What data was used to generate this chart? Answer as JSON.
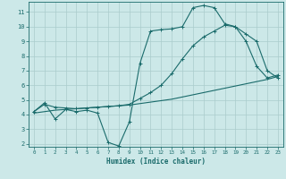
{
  "title": "",
  "xlabel": "Humidex (Indice chaleur)",
  "ylabel": "",
  "bg_color": "#cce8e8",
  "grid_color": "#aacccc",
  "line_color": "#1a6b6b",
  "xlim": [
    -0.5,
    23.5
  ],
  "ylim": [
    1.8,
    11.7
  ],
  "xticks": [
    0,
    1,
    2,
    3,
    4,
    5,
    6,
    7,
    8,
    9,
    10,
    11,
    12,
    13,
    14,
    15,
    16,
    17,
    18,
    19,
    20,
    21,
    22,
    23
  ],
  "yticks": [
    2,
    3,
    4,
    5,
    6,
    7,
    8,
    9,
    10,
    11
  ],
  "line1_x": [
    0,
    1,
    2,
    3,
    4,
    5,
    6,
    7,
    8,
    9,
    10,
    11,
    12,
    13,
    14,
    15,
    16,
    17,
    18,
    19,
    20,
    21,
    22,
    23
  ],
  "line1_y": [
    4.2,
    4.8,
    3.7,
    4.35,
    4.2,
    4.3,
    4.1,
    2.1,
    1.85,
    3.5,
    7.5,
    9.7,
    9.8,
    9.85,
    10.0,
    11.3,
    11.45,
    11.3,
    10.2,
    10.0,
    9.0,
    7.3,
    6.5,
    6.7
  ],
  "line2_x": [
    0,
    1,
    2,
    3,
    4,
    5,
    6,
    7,
    8,
    9,
    10,
    11,
    12,
    13,
    14,
    15,
    16,
    17,
    18,
    19,
    20,
    21,
    22,
    23
  ],
  "line2_y": [
    4.1,
    4.2,
    4.3,
    4.35,
    4.4,
    4.45,
    4.5,
    4.55,
    4.6,
    4.65,
    4.75,
    4.85,
    4.95,
    5.05,
    5.2,
    5.35,
    5.5,
    5.65,
    5.8,
    5.95,
    6.1,
    6.25,
    6.4,
    6.6
  ],
  "line3_x": [
    0,
    1,
    2,
    3,
    4,
    5,
    6,
    7,
    8,
    9,
    10,
    11,
    12,
    13,
    14,
    15,
    16,
    17,
    18,
    19,
    20,
    21,
    22,
    23
  ],
  "line3_y": [
    4.2,
    4.7,
    4.5,
    4.45,
    4.4,
    4.45,
    4.5,
    4.55,
    4.6,
    4.7,
    5.1,
    5.5,
    6.0,
    6.8,
    7.8,
    8.7,
    9.3,
    9.7,
    10.1,
    10.0,
    9.5,
    9.0,
    7.0,
    6.5
  ]
}
